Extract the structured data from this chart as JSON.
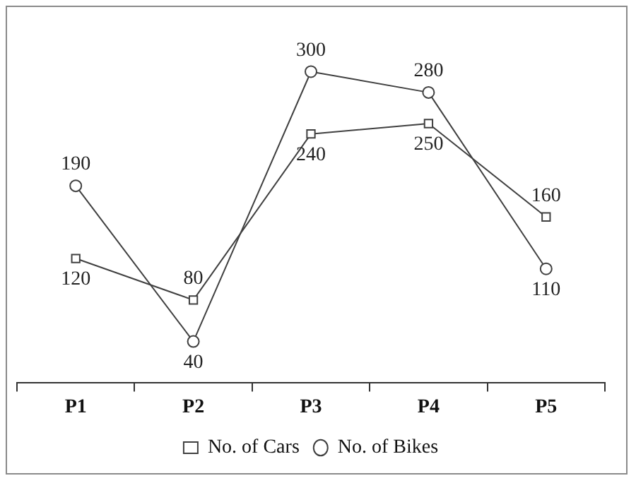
{
  "chart_data": {
    "type": "line",
    "categories": [
      "P1",
      "P2",
      "P3",
      "P4",
      "P5"
    ],
    "series": [
      {
        "name": "No. of Cars",
        "color": "#404040",
        "marker": "square",
        "values": [
          120,
          80,
          240,
          250,
          160
        ]
      },
      {
        "name": "No. of Bikes",
        "color": "#404040",
        "marker": "circle",
        "values": [
          190,
          40,
          300,
          280,
          110
        ]
      }
    ],
    "tick_labels": "x",
    "data_labels": true,
    "legend": "bottom",
    "grid": false
  }
}
